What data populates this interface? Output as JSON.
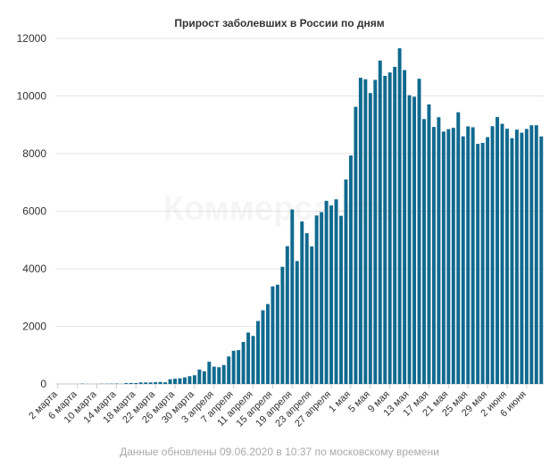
{
  "chart_data": {
    "type": "bar",
    "title": "Прирост заболевших в России по дням",
    "xlabel": "",
    "ylabel": "",
    "ylim": [
      0,
      12000
    ],
    "yticks": [
      0,
      2000,
      4000,
      6000,
      8000,
      10000,
      12000
    ],
    "grid": true,
    "legend": "none",
    "bar_color": "#106a8f",
    "categories": [
      "2 марта",
      "3 марта",
      "4 марта",
      "5 марта",
      "6 марта",
      "7 марта",
      "8 марта",
      "9 марта",
      "10 марта",
      "11 марта",
      "12 марта",
      "13 марта",
      "14 марта",
      "15 марта",
      "16 марта",
      "17 марта",
      "18 марта",
      "19 марта",
      "20 марта",
      "21 марта",
      "22 марта",
      "23 марта",
      "24 марта",
      "25 марта",
      "26 марта",
      "27 марта",
      "28 марта",
      "29 марта",
      "30 марта",
      "31 марта",
      "1 апреля",
      "2 апреля",
      "3 апреля",
      "4 апреля",
      "5 апреля",
      "6 апреля",
      "7 апреля",
      "8 апреля",
      "9 апреля",
      "10 апреля",
      "11 апреля",
      "12 апреля",
      "13 апреля",
      "14 апреля",
      "15 апреля",
      "16 апреля",
      "17 апреля",
      "18 апреля",
      "19 апреля",
      "20 апреля",
      "21 апреля",
      "22 апреля",
      "23 апреля",
      "24 апреля",
      "25 апреля",
      "26 апреля",
      "27 апреля",
      "28 апреля",
      "29 апреля",
      "30 апреля",
      "1 мая",
      "2 мая",
      "3 мая",
      "4 мая",
      "5 мая",
      "6 мая",
      "7 мая",
      "8 мая",
      "9 мая",
      "10 мая",
      "11 мая",
      "12 мая",
      "13 мая",
      "14 мая",
      "15 мая",
      "16 мая",
      "17 мая",
      "18 мая",
      "19 мая",
      "20 мая",
      "21 мая",
      "22 мая",
      "23 мая",
      "24 мая",
      "25 мая",
      "26 мая",
      "27 мая",
      "28 мая",
      "29 мая",
      "30 мая",
      "31 мая",
      "1 июня",
      "2 июня",
      "3 июня",
      "4 июня",
      "5 июня",
      "6 июня",
      "7 июня",
      "8 июня",
      "9 июня"
    ],
    "tick_labels": [
      {
        "index": 0,
        "label": "2 марта"
      },
      {
        "index": 4,
        "label": "6 марта"
      },
      {
        "index": 8,
        "label": "10 марта"
      },
      {
        "index": 12,
        "label": "14 марта"
      },
      {
        "index": 16,
        "label": "18 марта"
      },
      {
        "index": 20,
        "label": "22 марта"
      },
      {
        "index": 24,
        "label": "26 марта"
      },
      {
        "index": 28,
        "label": "30 марта"
      },
      {
        "index": 32,
        "label": "3 апреля"
      },
      {
        "index": 36,
        "label": "7 апреля"
      },
      {
        "index": 40,
        "label": "11 апреля"
      },
      {
        "index": 44,
        "label": "15 апреля"
      },
      {
        "index": 48,
        "label": "19 апреля"
      },
      {
        "index": 52,
        "label": "23 апреля"
      },
      {
        "index": 56,
        "label": "27 апреля"
      },
      {
        "index": 60,
        "label": "1 мая"
      },
      {
        "index": 64,
        "label": "5 мая"
      },
      {
        "index": 68,
        "label": "9 мая"
      },
      {
        "index": 72,
        "label": "13 мая"
      },
      {
        "index": 76,
        "label": "17 мая"
      },
      {
        "index": 80,
        "label": "21 мая"
      },
      {
        "index": 84,
        "label": "25 мая"
      },
      {
        "index": 88,
        "label": "29 мая"
      },
      {
        "index": 92,
        "label": "2 июня"
      },
      {
        "index": 96,
        "label": "6 июня"
      }
    ],
    "values": [
      1,
      0,
      0,
      1,
      1,
      10,
      3,
      0,
      1,
      8,
      8,
      11,
      14,
      4,
      29,
      34,
      33,
      52,
      53,
      53,
      61,
      71,
      57,
      163,
      182,
      196,
      228,
      270,
      302,
      500,
      440,
      771,
      601,
      582,
      658,
      954,
      1154,
      1175,
      1459,
      1786,
      1667,
      2186,
      2558,
      2774,
      3388,
      3448,
      4070,
      4785,
      6060,
      4268,
      5642,
      5236,
      4774,
      5849,
      5966,
      6361,
      6198,
      6411,
      5841,
      7099,
      7933,
      9623,
      10633,
      10581,
      10102,
      10559,
      11231,
      10699,
      10817,
      11012,
      11656,
      10899,
      10028,
      9974,
      10598,
      9200,
      9709,
      8926,
      9263,
      8764,
      8849,
      8894,
      9434,
      8599,
      8946,
      8915,
      8338,
      8371,
      8572,
      8952,
      9268,
      9035,
      8863,
      8536,
      8831,
      8726,
      8855,
      8984,
      8985,
      8595
    ]
  },
  "footer": {
    "text": "Данные обновлены 09.06.2020 в 10:37 по московскому времени"
  },
  "watermark": {
    "text": "Коммерсантъ"
  }
}
